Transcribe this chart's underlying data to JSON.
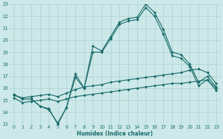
{
  "xlabel": "Humidex (Indice chaleur)",
  "x": [
    0,
    1,
    2,
    3,
    4,
    5,
    6,
    7,
    8,
    9,
    10,
    11,
    12,
    13,
    14,
    15,
    16,
    17,
    18,
    19,
    20,
    21,
    22,
    23
  ],
  "line1": [
    15.5,
    15.1,
    15.1,
    14.5,
    14.3,
    13.0,
    14.4,
    17.2,
    16.0,
    19.5,
    19.1,
    20.3,
    21.5,
    21.8,
    21.9,
    23.0,
    22.3,
    20.9,
    19.0,
    18.8,
    18.0,
    16.5,
    17.0,
    16.1
  ],
  "line2": [
    15.5,
    15.1,
    15.1,
    14.5,
    14.2,
    13.1,
    14.4,
    16.9,
    16.0,
    19.0,
    19.0,
    20.1,
    21.3,
    21.6,
    21.7,
    22.7,
    22.0,
    20.5,
    18.7,
    18.5,
    17.8,
    16.2,
    16.7,
    15.8
  ],
  "line3": [
    15.4,
    15.2,
    15.3,
    15.4,
    15.5,
    15.3,
    15.6,
    15.9,
    16.1,
    16.2,
    16.3,
    16.5,
    16.6,
    16.7,
    16.8,
    16.9,
    17.0,
    17.1,
    17.2,
    17.3,
    17.5,
    17.6,
    17.3,
    16.4
  ],
  "line4": [
    15.2,
    14.8,
    14.9,
    15.0,
    15.1,
    14.9,
    15.1,
    15.3,
    15.4,
    15.5,
    15.6,
    15.7,
    15.8,
    15.9,
    16.0,
    16.1,
    16.2,
    16.3,
    16.4,
    16.4,
    16.5,
    16.6,
    16.7,
    16.0
  ],
  "bg_color": "#cce8e8",
  "grid_color": "#aacfcf",
  "line_color": "#1a6b6b",
  "ylim": [
    13,
    23
  ],
  "yticks": [
    13,
    14,
    15,
    16,
    17,
    18,
    19,
    20,
    21,
    22,
    23
  ],
  "xlim": [
    -0.5,
    23.5
  ]
}
